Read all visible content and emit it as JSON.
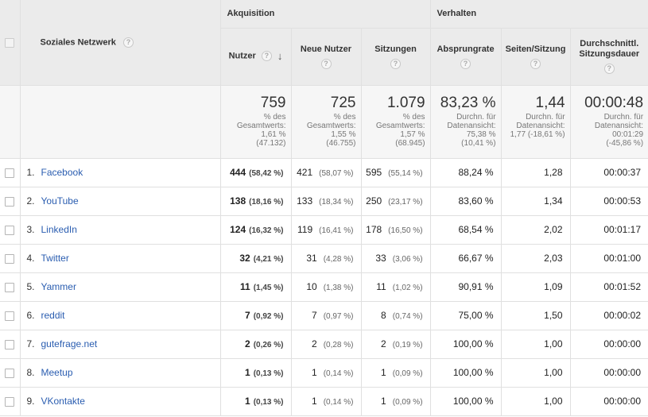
{
  "header": {
    "dimension_label": "Soziales Netzwerk",
    "group_acquisition": "Akquisition",
    "group_behavior": "Verhalten",
    "columns": [
      {
        "label": "Nutzer"
      },
      {
        "label": "Neue Nutzer"
      },
      {
        "label": "Sitzungen"
      },
      {
        "label": "Absprungrate"
      },
      {
        "label": "Seiten/Sitzung"
      },
      {
        "label": "Durchschnittl. Sitzungsdauer"
      }
    ],
    "help_glyph": "?",
    "sort_arrow": "↓"
  },
  "totals": [
    {
      "value": "759",
      "lines": [
        "% des",
        "Gesamtwerts:",
        "1,61 %",
        "(47.132)"
      ]
    },
    {
      "value": "725",
      "lines": [
        "% des",
        "Gesamtwerts:",
        "1,55 %",
        "(46.755)"
      ]
    },
    {
      "value": "1.079",
      "lines": [
        "% des",
        "Gesamtwerts:",
        "1,57 %",
        "(68.945)"
      ]
    },
    {
      "value": "83,23 %",
      "lines": [
        "Durchn. für",
        "Datenansicht:",
        "75,38 %",
        "(10,41 %)"
      ]
    },
    {
      "value": "1,44",
      "lines": [
        "Durchn. für",
        "Datenansicht:",
        "1,77 (-18,61 %)"
      ]
    },
    {
      "value": "00:00:48",
      "lines": [
        "Durchn. für",
        "Datenansicht:",
        "00:01:29",
        "(-45,86 %)"
      ]
    }
  ],
  "rows": [
    {
      "idx": "1.",
      "name": "Facebook",
      "users": "444",
      "users_pct": "(58,42 %)",
      "new": "421",
      "new_pct": "(58,07 %)",
      "sessions": "595",
      "sessions_pct": "(55,14 %)",
      "bounce": "88,24 %",
      "pps": "1,28",
      "dur": "00:00:37"
    },
    {
      "idx": "2.",
      "name": "YouTube",
      "users": "138",
      "users_pct": "(18,16 %)",
      "new": "133",
      "new_pct": "(18,34 %)",
      "sessions": "250",
      "sessions_pct": "(23,17 %)",
      "bounce": "83,60 %",
      "pps": "1,34",
      "dur": "00:00:53"
    },
    {
      "idx": "3.",
      "name": "LinkedIn",
      "users": "124",
      "users_pct": "(16,32 %)",
      "new": "119",
      "new_pct": "(16,41 %)",
      "sessions": "178",
      "sessions_pct": "(16,50 %)",
      "bounce": "68,54 %",
      "pps": "2,02",
      "dur": "00:01:17"
    },
    {
      "idx": "4.",
      "name": "Twitter",
      "users": "32",
      "users_pct": "(4,21 %)",
      "new": "31",
      "new_pct": "(4,28 %)",
      "sessions": "33",
      "sessions_pct": "(3,06 %)",
      "bounce": "66,67 %",
      "pps": "2,03",
      "dur": "00:01:00"
    },
    {
      "idx": "5.",
      "name": "Yammer",
      "users": "11",
      "users_pct": "(1,45 %)",
      "new": "10",
      "new_pct": "(1,38 %)",
      "sessions": "11",
      "sessions_pct": "(1,02 %)",
      "bounce": "90,91 %",
      "pps": "1,09",
      "dur": "00:01:52"
    },
    {
      "idx": "6.",
      "name": "reddit",
      "users": "7",
      "users_pct": "(0,92 %)",
      "new": "7",
      "new_pct": "(0,97 %)",
      "sessions": "8",
      "sessions_pct": "(0,74 %)",
      "bounce": "75,00 %",
      "pps": "1,50",
      "dur": "00:00:02"
    },
    {
      "idx": "7.",
      "name": "gutefrage.net",
      "users": "2",
      "users_pct": "(0,26 %)",
      "new": "2",
      "new_pct": "(0,28 %)",
      "sessions": "2",
      "sessions_pct": "(0,19 %)",
      "bounce": "100,00 %",
      "pps": "1,00",
      "dur": "00:00:00"
    },
    {
      "idx": "8.",
      "name": "Meetup",
      "users": "1",
      "users_pct": "(0,13 %)",
      "new": "1",
      "new_pct": "(0,14 %)",
      "sessions": "1",
      "sessions_pct": "(0,09 %)",
      "bounce": "100,00 %",
      "pps": "1,00",
      "dur": "00:00:00"
    },
    {
      "idx": "9.",
      "name": "VKontakte",
      "users": "1",
      "users_pct": "(0,13 %)",
      "new": "1",
      "new_pct": "(0,14 %)",
      "sessions": "1",
      "sessions_pct": "(0,09 %)",
      "bounce": "100,00 %",
      "pps": "1,00",
      "dur": "00:00:00"
    }
  ],
  "colors": {
    "link": "#2a5db0",
    "header_bg": "#ebebeb",
    "totals_bg": "#f6f6f6"
  }
}
